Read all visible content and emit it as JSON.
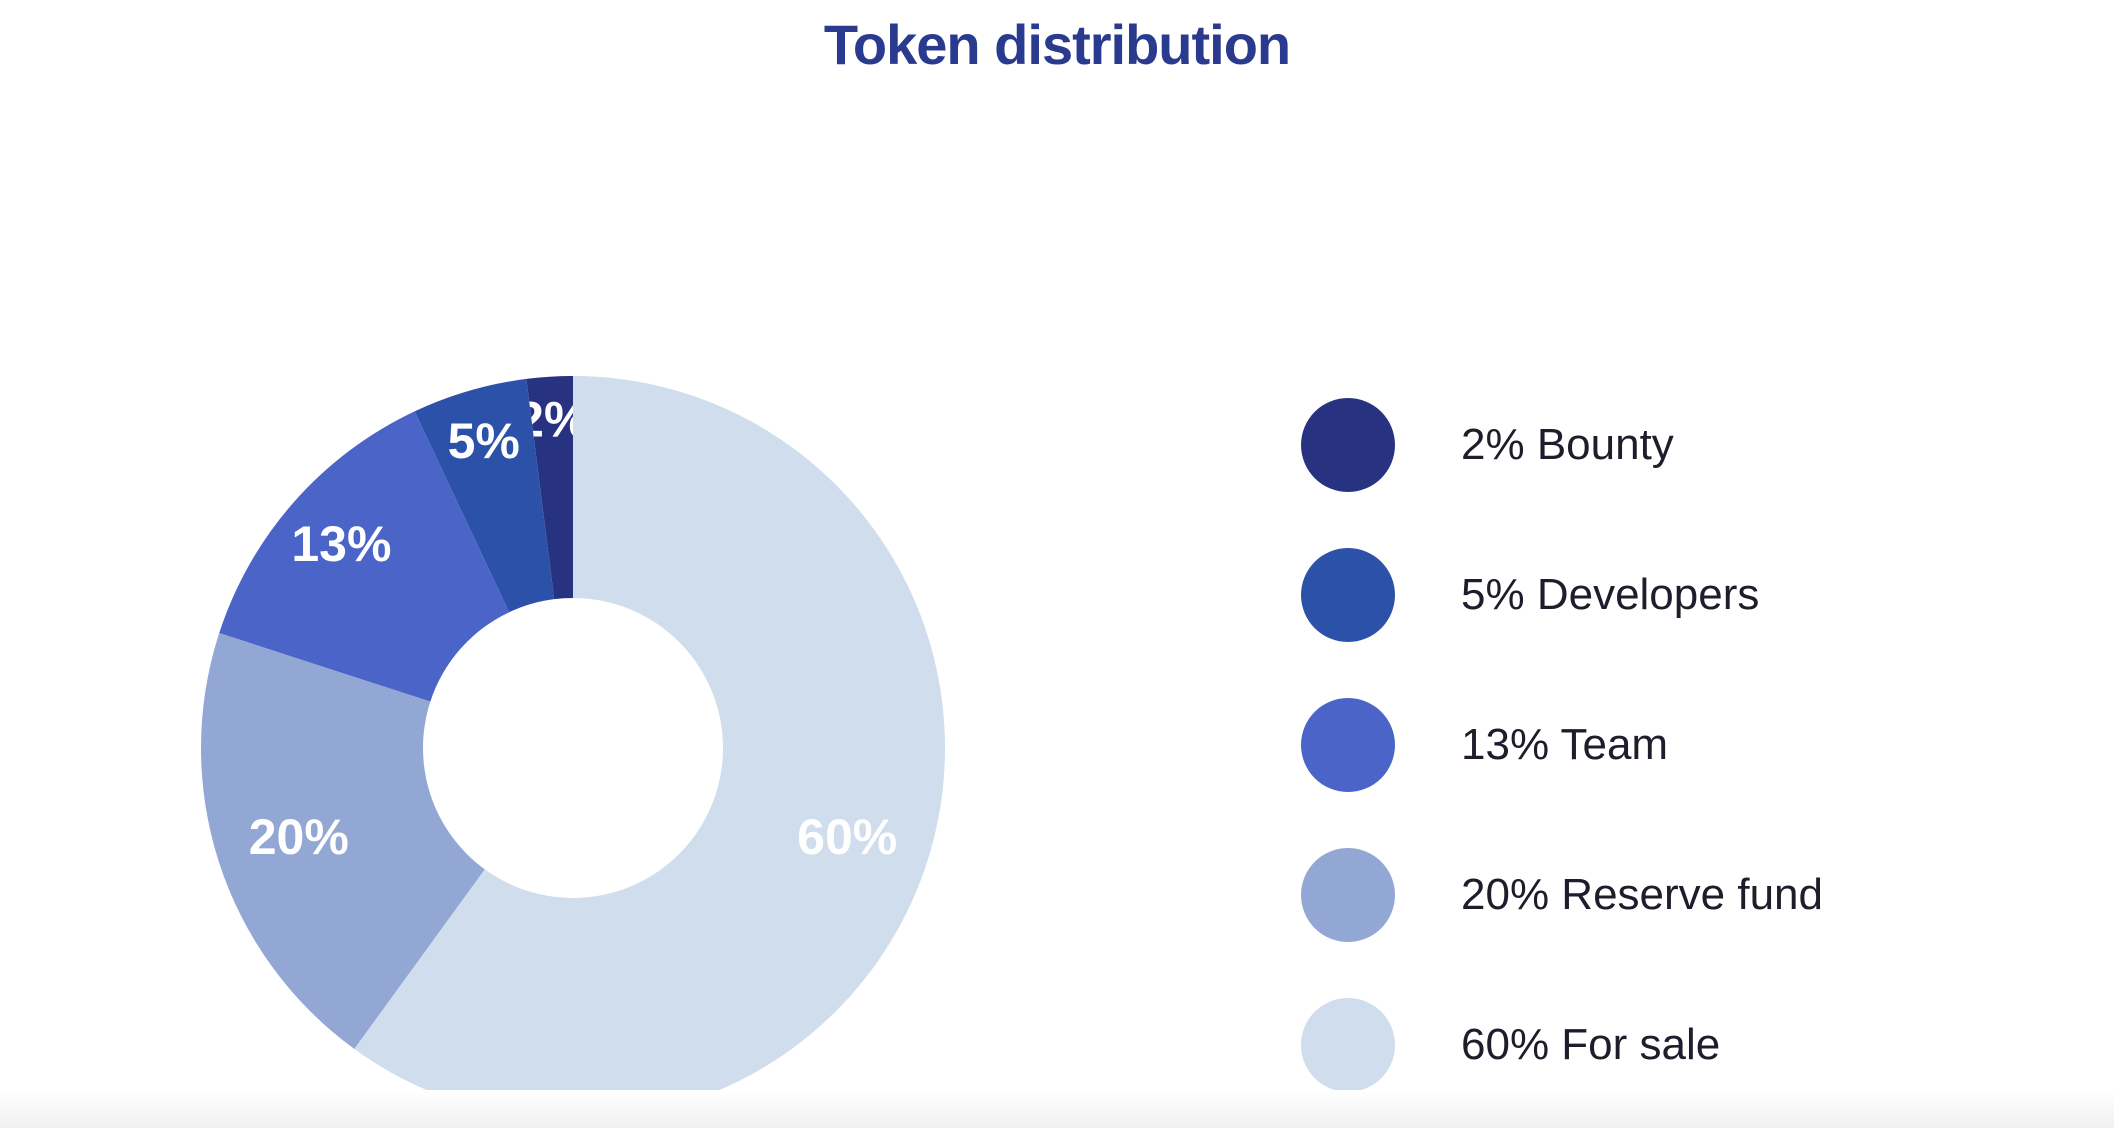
{
  "chart_data": {
    "type": "pie",
    "variant": "donut",
    "title": "Token distribution",
    "legend_position": "right",
    "inner_radius_ratio": 0.4,
    "start_angle": "top",
    "direction": "counter-clockwise-in-listed-order",
    "slices": [
      {
        "label": "Bounty",
        "value": 2,
        "percent_label": "2%",
        "legend_label": "2% Bounty",
        "color": "#273380"
      },
      {
        "label": "Developers",
        "value": 5,
        "percent_label": "5%",
        "legend_label": "5% Developers",
        "color": "#2b52a8"
      },
      {
        "label": "Team",
        "value": 13,
        "percent_label": "13%",
        "legend_label": "13% Team",
        "color": "#4b64c8"
      },
      {
        "label": "Reserve fund",
        "value": 20,
        "percent_label": "20%",
        "legend_label": "20% Reserve fund",
        "color": "#93a7d4"
      },
      {
        "label": "For sale",
        "value": 60,
        "percent_label": "60%",
        "legend_label": "60% For sale",
        "color": "#cfdded"
      }
    ]
  },
  "colors": {
    "title_text": "#2a3b8f",
    "legend_text": "#1d1d2b",
    "slice_label_text": "#ffffff",
    "background": "#ffffff"
  }
}
